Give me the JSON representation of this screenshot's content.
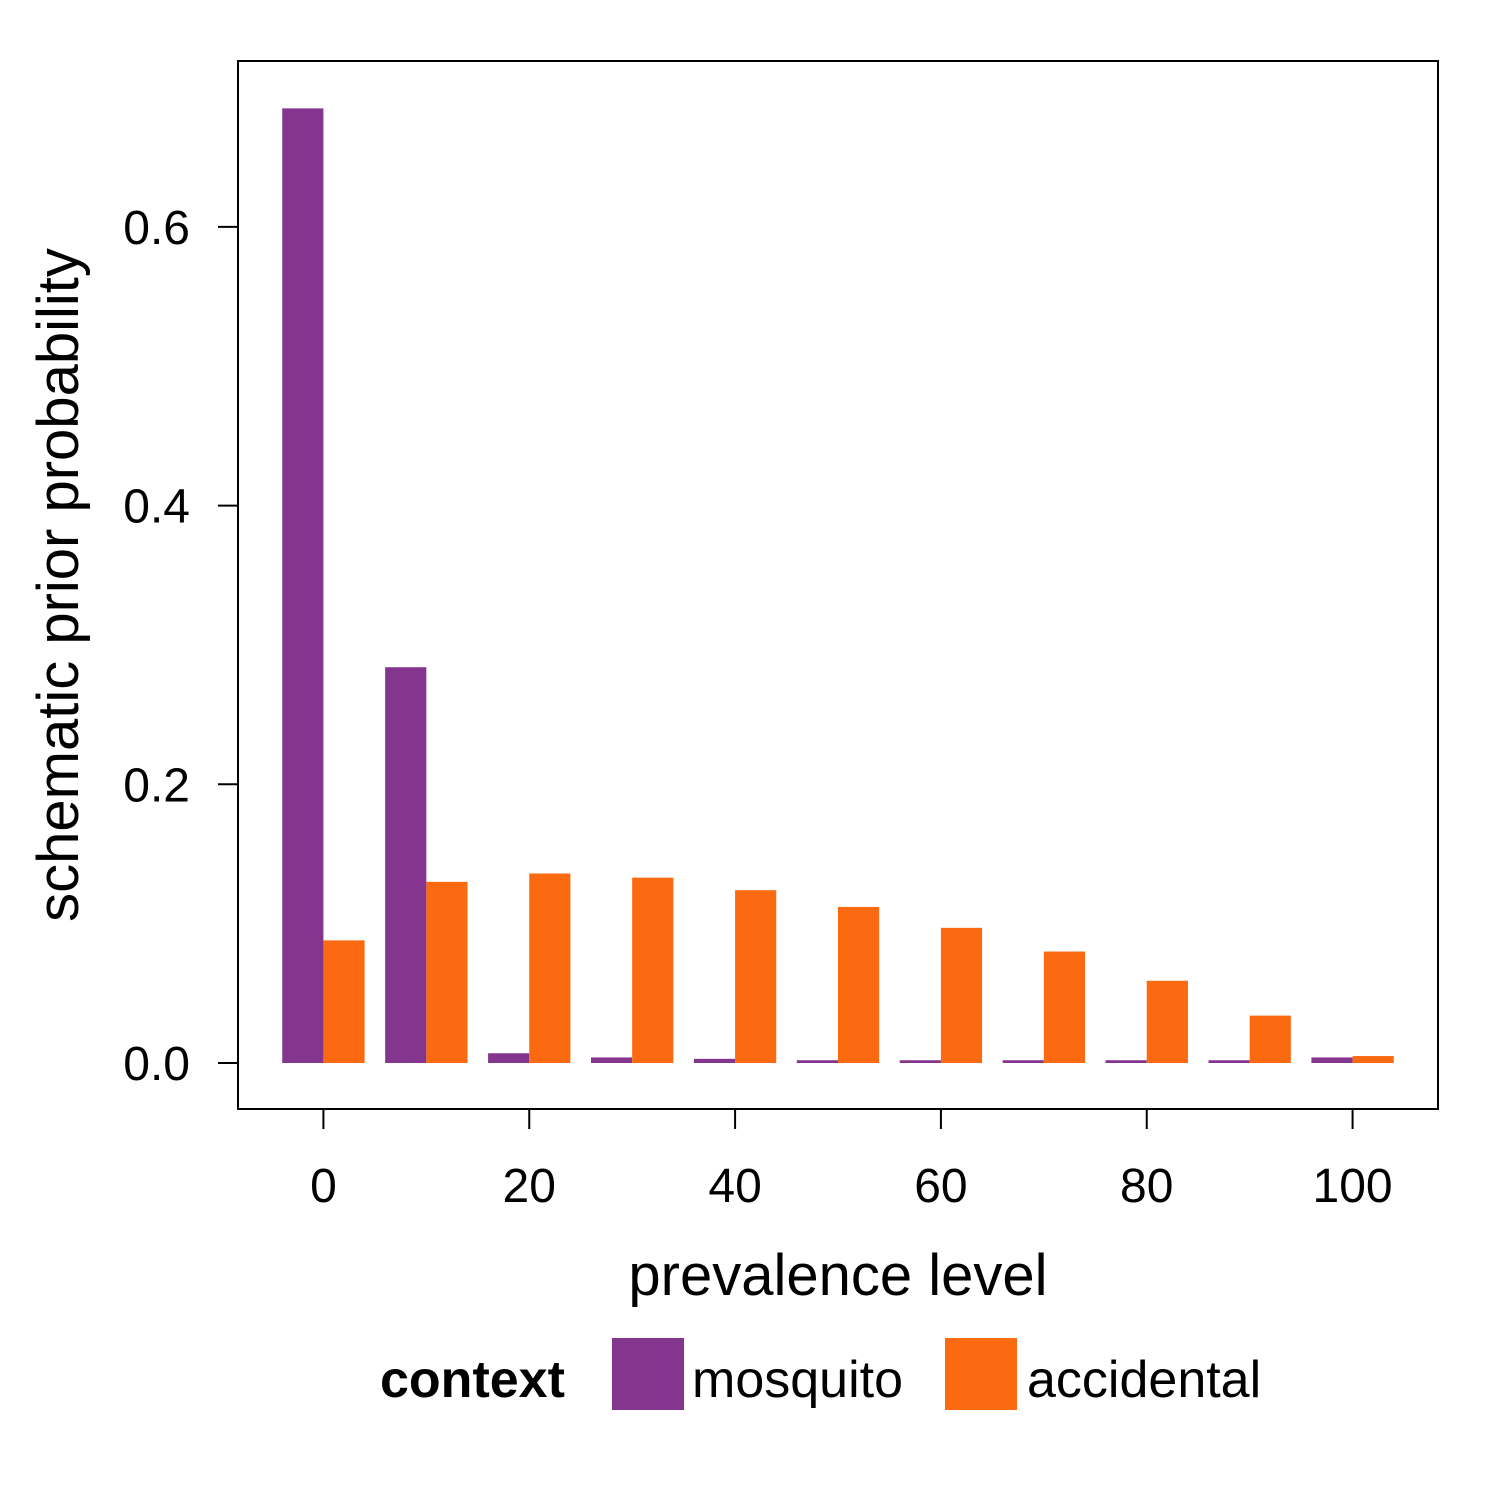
{
  "chart_data": {
    "type": "bar",
    "categories": [
      "0",
      "10",
      "20",
      "30",
      "40",
      "50",
      "60",
      "70",
      "80",
      "90",
      "100"
    ],
    "x": [
      0,
      10,
      20,
      30,
      40,
      50,
      60,
      70,
      80,
      90,
      100
    ],
    "series": [
      {
        "name": "mosquito",
        "color": "#84358e",
        "values": [
          0.685,
          0.284,
          0.007,
          0.004,
          0.003,
          0.002,
          0.002,
          0.002,
          0.002,
          0.002,
          0.004
        ]
      },
      {
        "name": "accidental",
        "color": "#fb6a10",
        "values": [
          0.088,
          0.13,
          0.136,
          0.133,
          0.124,
          0.112,
          0.097,
          0.08,
          0.059,
          0.034,
          0.005
        ]
      }
    ],
    "xlabel": "prevalence level",
    "ylabel": "schematic prior probability",
    "xlim": [
      -8.3,
      108.3
    ],
    "ylim": [
      -0.033,
      0.719
    ],
    "xticks": [
      "0",
      "20",
      "40",
      "60",
      "80",
      "100"
    ],
    "yticks": [
      "0.0",
      "0.2",
      "0.4",
      "0.6"
    ],
    "legend": {
      "title": "context",
      "position": "bottom",
      "entries": [
        "mosquito",
        "accidental"
      ]
    },
    "grid": false
  }
}
